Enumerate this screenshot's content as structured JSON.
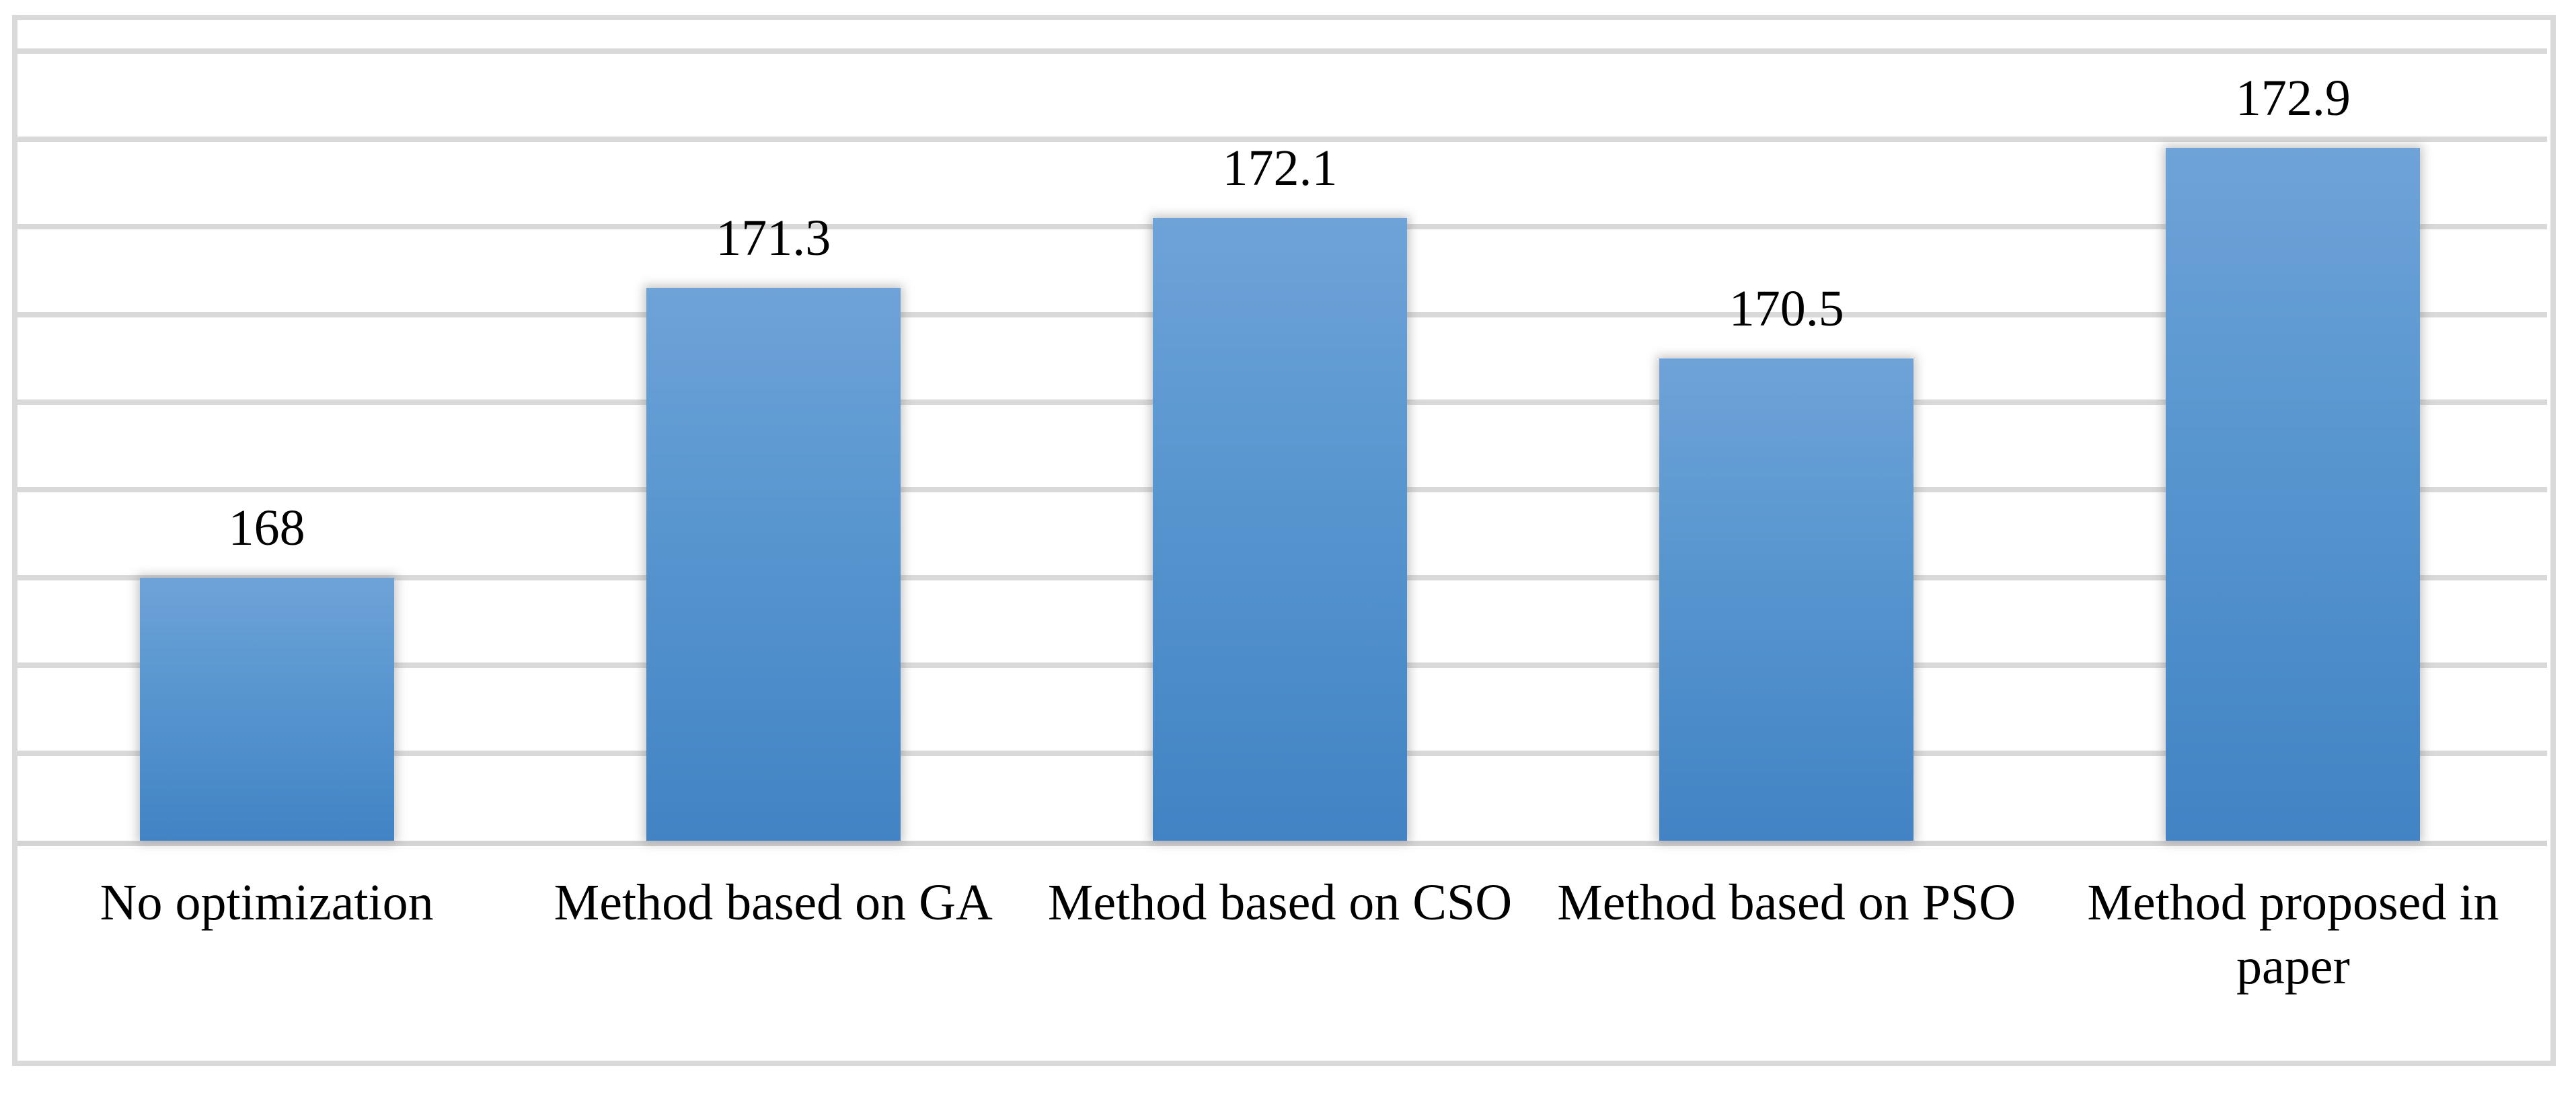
{
  "chart_data": {
    "type": "bar",
    "title": "",
    "xlabel": "",
    "ylabel": "",
    "categories": [
      "No optimization",
      "Method based on GA",
      "Method based on CSO",
      "Method based on PSO",
      "Method proposed in paper"
    ],
    "values": [
      168,
      171.3,
      172.1,
      170.5,
      172.9
    ],
    "data_labels": [
      "168",
      "171.3",
      "172.1",
      "170.5",
      "172.9"
    ],
    "ylim": [
      165,
      174.45
    ],
    "gridline_step": 1,
    "grid": "horizontal",
    "y_axis_tick_labels_visible": false,
    "legend": "none",
    "colors": {
      "bar_top": "#6ea3d8",
      "bar_bottom": "#4183c4",
      "gridline": "#d9d9d9",
      "chart_border": "#d9d9d9",
      "axis_line": "#d4d4d4",
      "label_text": "#000000",
      "background": "#ffffff"
    }
  }
}
